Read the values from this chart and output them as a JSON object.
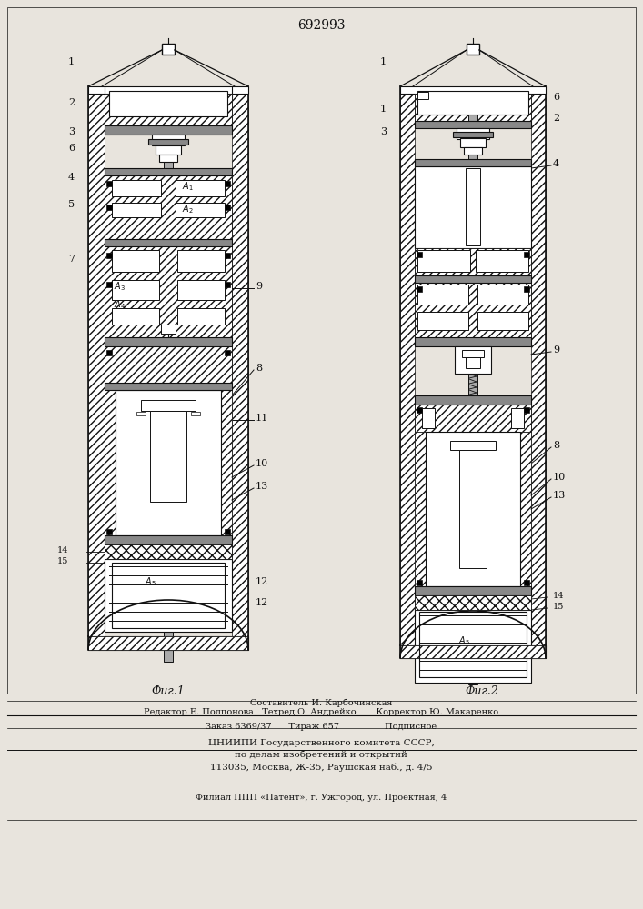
{
  "patent_number": "692993",
  "fig1_label": "Фиг.1",
  "fig2_label": "Фиг.2",
  "footer_line1": "Составитель И. Карбочинская",
  "footer_line2": "Редактор Е. Полпонова   Техред О. Андрейко       Корректор Ю. Макаренко",
  "footer_line3": "Заказ 6369/37      Тираж 657                Подписное",
  "footer_line4": "ЦНИИПИ Государственного комитета СССР,",
  "footer_line5": "по делам изобретений и открытий",
  "footer_line6": "113035, Москва, Ж-35, Раушская наб., д. 4/5",
  "footer_line7": "Филиал ППП «Патент», г. Ужгород, ул. Проектная, 4",
  "bg_color": "#e8e4dd",
  "line_color": "#111111"
}
